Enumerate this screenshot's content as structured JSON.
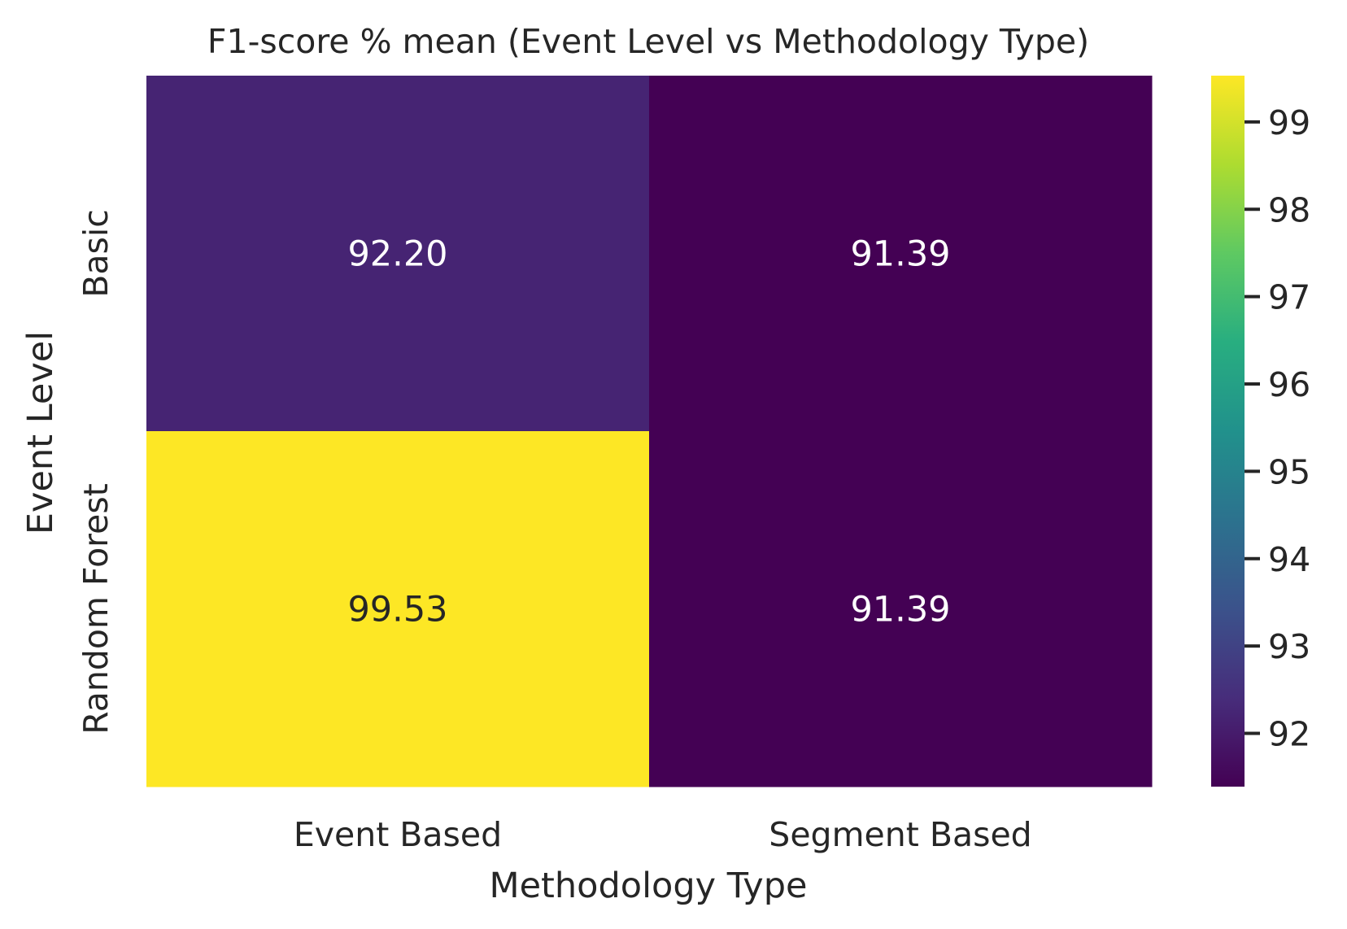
{
  "chart_data": {
    "type": "heatmap",
    "title": "F1-score % mean (Event Level vs Methodology Type)",
    "xlabel": "Methodology Type",
    "ylabel": "Event Level",
    "x_categories": [
      "Event Based",
      "Segment Based"
    ],
    "y_categories": [
      "Basic",
      "Random Forest"
    ],
    "values": [
      [
        92.2,
        91.39
      ],
      [
        99.53,
        91.39
      ]
    ],
    "value_labels": [
      [
        "92.20",
        "91.39"
      ],
      [
        "99.53",
        "91.39"
      ]
    ],
    "colormap": "viridis",
    "color_range": [
      91.39,
      99.53
    ],
    "colorbar": {
      "ticks": [
        92,
        93,
        94,
        95,
        96,
        97,
        98,
        99
      ],
      "tick_labels": [
        "92",
        "93",
        "94",
        "95",
        "96",
        "97",
        "98",
        "99"
      ]
    }
  }
}
